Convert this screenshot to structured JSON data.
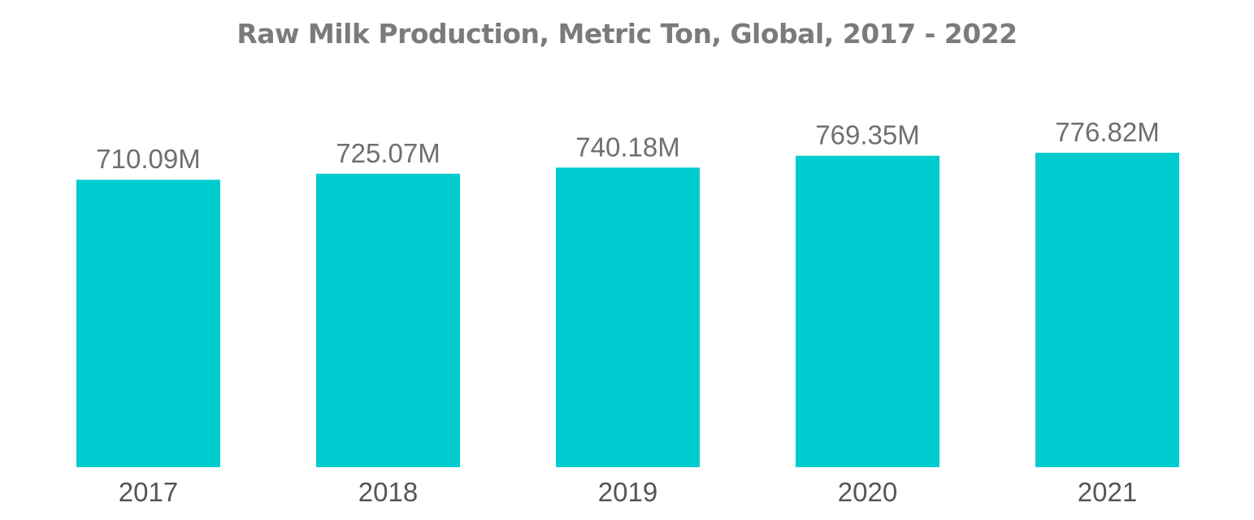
{
  "chart_data": {
    "type": "bar",
    "title": "Raw Milk Production, Metric Ton, Global, 2017 - 2022",
    "xlabel": "",
    "ylabel": "",
    "categories": [
      "2017",
      "2018",
      "2019",
      "2020",
      "2021"
    ],
    "values": [
      710.09,
      725.07,
      740.18,
      769.35,
      776.82
    ],
    "value_labels": [
      "710.09M",
      "725.07M",
      "740.18M",
      "769.35M",
      "776.82M"
    ],
    "unit": "M",
    "ylim": [
      0,
      776.82
    ],
    "grid": false,
    "legend": "none",
    "colors": {
      "bar": "#00ccd0",
      "title": "#7b7b7b",
      "label": "#6f6f6f"
    }
  }
}
